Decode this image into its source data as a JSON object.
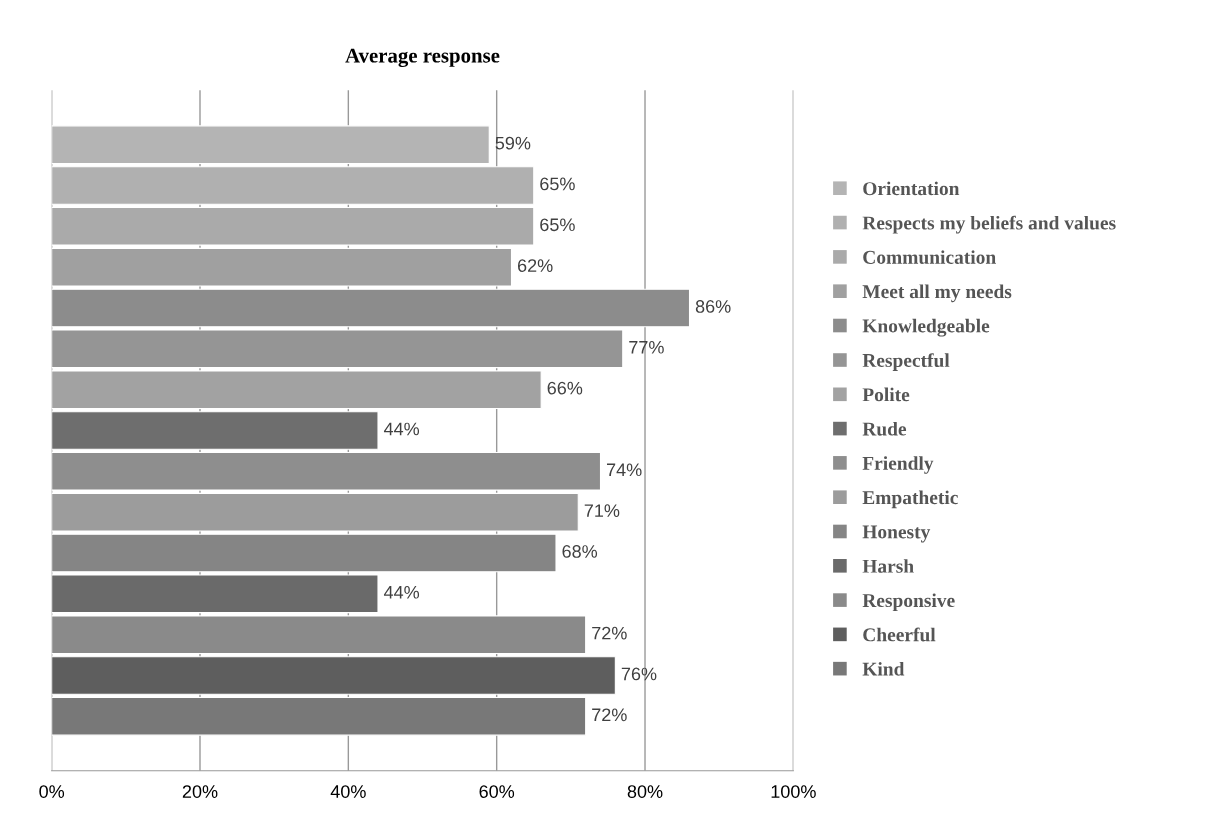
{
  "chart_data": {
    "type": "bar",
    "title": "Average response",
    "orientation": "horizontal",
    "categories": [
      null
    ],
    "series": [
      {
        "name": "Orientation",
        "color": "#b4b4b4",
        "values": [
          59
        ],
        "value_labels": [
          "59%"
        ]
      },
      {
        "name": "Respects my beliefs and values",
        "color": "#b0b0b0",
        "values": [
          65
        ],
        "value_labels": [
          "65%"
        ]
      },
      {
        "name": "Communication",
        "color": "#aaaaaa",
        "values": [
          65
        ],
        "value_labels": [
          "65%"
        ]
      },
      {
        "name": "Meet all my needs",
        "color": "#a0a0a0",
        "values": [
          62
        ],
        "value_labels": [
          "62%"
        ]
      },
      {
        "name": "Knowledgeable",
        "color": "#8c8c8c",
        "values": [
          86
        ],
        "value_labels": [
          "86%"
        ]
      },
      {
        "name": "Respectful",
        "color": "#959595",
        "values": [
          77
        ],
        "value_labels": [
          "77%"
        ]
      },
      {
        "name": "Polite",
        "color": "#a2a2a2",
        "values": [
          66
        ],
        "value_labels": [
          "66%"
        ]
      },
      {
        "name": "Rude",
        "color": "#6e6e6e",
        "values": [
          44
        ],
        "value_labels": [
          "44%"
        ]
      },
      {
        "name": "Friendly",
        "color": "#8e8e8e",
        "values": [
          74
        ],
        "value_labels": [
          "74%"
        ]
      },
      {
        "name": "Empathetic",
        "color": "#9c9c9c",
        "values": [
          71
        ],
        "value_labels": [
          "71%"
        ]
      },
      {
        "name": "Honesty",
        "color": "#858585",
        "values": [
          68
        ],
        "value_labels": [
          "68%"
        ]
      },
      {
        "name": "Harsh",
        "color": "#6a6a6a",
        "values": [
          44
        ],
        "value_labels": [
          "44%"
        ]
      },
      {
        "name": "Responsive",
        "color": "#8a8a8a",
        "values": [
          72
        ],
        "value_labels": [
          "72%"
        ]
      },
      {
        "name": "Cheerful",
        "color": "#5e5e5e",
        "values": [
          76
        ],
        "value_labels": [
          "76%"
        ]
      },
      {
        "name": "Kind",
        "color": "#787878",
        "values": [
          72
        ],
        "value_labels": [
          "72%"
        ]
      }
    ],
    "xlim": [
      0,
      100
    ],
    "xticks": [
      {
        "value": 0,
        "label": "0%"
      },
      {
        "value": 20,
        "label": "20%"
      },
      {
        "value": 40,
        "label": "40%"
      },
      {
        "value": 60,
        "label": "60%"
      },
      {
        "value": 80,
        "label": "80%"
      },
      {
        "value": 100,
        "label": "100%"
      }
    ],
    "grid": "x",
    "legend": "right"
  }
}
